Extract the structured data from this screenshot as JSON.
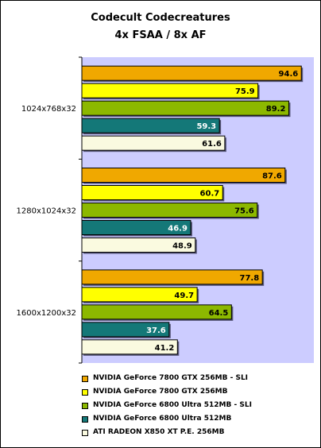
{
  "chart_data": {
    "type": "bar",
    "orientation": "horizontal",
    "title": "Codecult Codecreatures",
    "subtitle": "4x FSAA / 8x AF",
    "categories": [
      "1024x768x32",
      "1280x1024x32",
      "1600x1200x32"
    ],
    "series": [
      {
        "name": "NVIDIA GeForce 7800 GTX 256MB - SLI",
        "color": "#f0a800",
        "values": [
          94.6,
          87.6,
          77.8
        ]
      },
      {
        "name": "NVIDIA GeForce 7800 GTX 256MB",
        "color": "#ffff00",
        "values": [
          75.9,
          60.7,
          49.7
        ]
      },
      {
        "name": "NVIDIA GeForce 6800 Ultra 512MB - SLI",
        "color": "#8cb800",
        "values": [
          89.2,
          75.6,
          64.5
        ]
      },
      {
        "name": "NVIDIA GeForce 6800 Ultra 512MB",
        "color": "#147878",
        "values": [
          59.3,
          46.9,
          37.6
        ]
      },
      {
        "name": "ATI RADEON X850 XT P.E. 256MB",
        "color": "#fafae0",
        "values": [
          61.6,
          48.9,
          41.2
        ]
      }
    ],
    "xlim": [
      0,
      100
    ],
    "grid": false,
    "plot_background": "#ccccff",
    "legend_position": "bottom"
  }
}
